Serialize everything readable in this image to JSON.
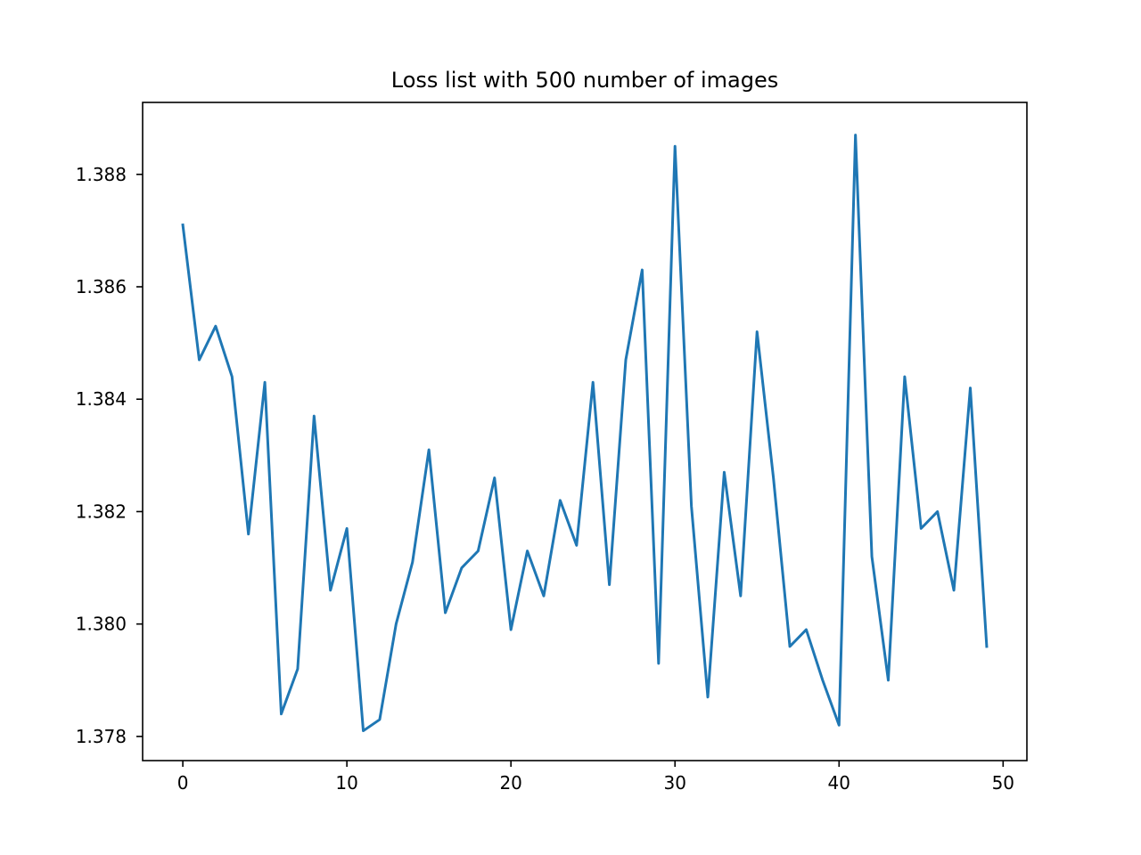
{
  "chart_data": {
    "type": "line",
    "title": "Loss list with 500 number of images",
    "xlabel": "",
    "ylabel": "",
    "xlim": [
      -2.45,
      51.45
    ],
    "ylim": [
      1.37757,
      1.38928
    ],
    "x_ticks": [
      0,
      10,
      20,
      30,
      40,
      50
    ],
    "x_tick_labels": [
      "0",
      "10",
      "20",
      "30",
      "40",
      "50"
    ],
    "y_ticks": [
      1.378,
      1.38,
      1.382,
      1.384,
      1.386,
      1.388
    ],
    "y_tick_labels": [
      "1.378",
      "1.380",
      "1.382",
      "1.384",
      "1.386",
      "1.388"
    ],
    "grid": false,
    "legend": "none",
    "series": [
      {
        "color": "#1f77b4",
        "x": [
          0,
          1,
          2,
          3,
          4,
          5,
          6,
          7,
          8,
          9,
          10,
          11,
          12,
          13,
          14,
          15,
          16,
          17,
          18,
          19,
          20,
          21,
          22,
          23,
          24,
          25,
          26,
          27,
          28,
          29,
          30,
          31,
          32,
          33,
          34,
          35,
          36,
          37,
          38,
          39,
          40,
          41,
          42,
          43,
          44,
          45,
          46,
          47,
          48,
          49
        ],
        "values": [
          1.3871,
          1.3847,
          1.3853,
          1.3844,
          1.3816,
          1.3843,
          1.3784,
          1.3792,
          1.3837,
          1.3806,
          1.3817,
          1.3781,
          1.3783,
          1.38,
          1.3811,
          1.3831,
          1.3802,
          1.381,
          1.3813,
          1.3826,
          1.3799,
          1.3813,
          1.3805,
          1.3822,
          1.3814,
          1.3843,
          1.3807,
          1.3847,
          1.3863,
          1.3793,
          1.3885,
          1.3821,
          1.3787,
          1.3827,
          1.3805,
          1.3852,
          1.3826,
          1.3796,
          1.3799,
          1.379,
          1.3782,
          1.3887,
          1.3812,
          1.379,
          1.3844,
          1.3817,
          1.382,
          1.3806,
          1.3842,
          1.3796
        ]
      }
    ]
  }
}
